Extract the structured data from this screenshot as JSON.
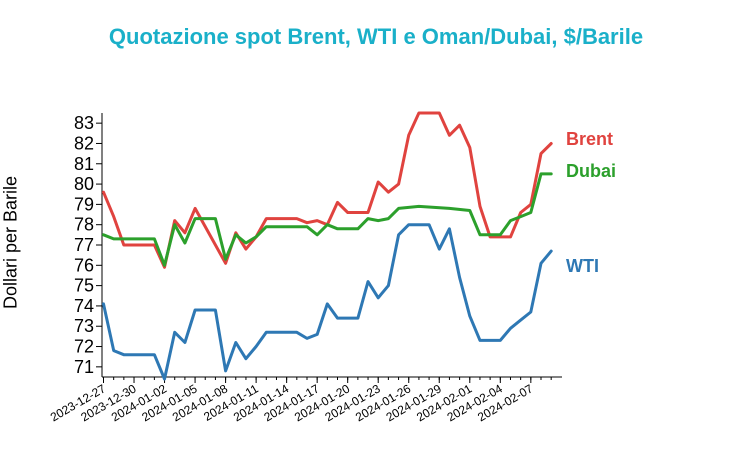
{
  "chart_data": {
    "type": "line",
    "title": "Quotazione spot Brent, WTI e Oman/Dubai, $/Barile",
    "ylabel": "Dollari per Barile",
    "xlabel": "",
    "ylim": [
      70.5,
      83.5
    ],
    "yticks": [
      71,
      72,
      73,
      74,
      75,
      76,
      77,
      78,
      79,
      80,
      81,
      82,
      83
    ],
    "x_start": "2023-12-27",
    "x_end": "2024-02-08",
    "x_ticks": [
      "2023-12-27",
      "2023-12-30",
      "2024-01-02",
      "2024-01-05",
      "2024-01-08",
      "2024-01-11",
      "2024-01-14",
      "2024-01-17",
      "2024-01-20",
      "2024-01-23",
      "2024-01-26",
      "2024-01-29",
      "2024-02-01",
      "2024-02-04",
      "2024-02-07"
    ],
    "series": [
      {
        "name": "Brent",
        "color": "#e0433f",
        "points": [
          [
            "2023-12-27",
            79.6
          ],
          [
            "2023-12-28",
            78.4
          ],
          [
            "2023-12-29",
            77.0
          ],
          [
            "2024-01-01",
            77.0
          ],
          [
            "2024-01-02",
            75.9
          ],
          [
            "2024-01-03",
            78.2
          ],
          [
            "2024-01-04",
            77.6
          ],
          [
            "2024-01-05",
            78.8
          ],
          [
            "2024-01-08",
            76.1
          ],
          [
            "2024-01-09",
            77.6
          ],
          [
            "2024-01-10",
            76.8
          ],
          [
            "2024-01-11",
            77.4
          ],
          [
            "2024-01-12",
            78.3
          ],
          [
            "2024-01-15",
            78.3
          ],
          [
            "2024-01-16",
            78.1
          ],
          [
            "2024-01-17",
            78.2
          ],
          [
            "2024-01-18",
            78.0
          ],
          [
            "2024-01-19",
            79.1
          ],
          [
            "2024-01-20",
            78.6
          ],
          [
            "2024-01-22",
            78.6
          ],
          [
            "2024-01-23",
            80.1
          ],
          [
            "2024-01-24",
            79.6
          ],
          [
            "2024-01-25",
            80.0
          ],
          [
            "2024-01-26",
            82.4
          ],
          [
            "2024-01-27",
            83.5
          ],
          [
            "2024-01-29",
            83.5
          ],
          [
            "2024-01-30",
            82.4
          ],
          [
            "2024-01-31",
            82.9
          ],
          [
            "2024-02-01",
            81.8
          ],
          [
            "2024-02-02",
            78.9
          ],
          [
            "2024-02-03",
            77.4
          ],
          [
            "2024-02-05",
            77.4
          ],
          [
            "2024-02-06",
            78.6
          ],
          [
            "2024-02-07",
            79.0
          ],
          [
            "2024-02-08",
            81.5
          ],
          [
            "2024-02-09",
            82.0
          ]
        ]
      },
      {
        "name": "Dubai",
        "color": "#2ca02c",
        "points": [
          [
            "2023-12-27",
            77.5
          ],
          [
            "2023-12-28",
            77.3
          ],
          [
            "2024-01-01",
            77.3
          ],
          [
            "2024-01-02",
            76.0
          ],
          [
            "2024-01-03",
            78.0
          ],
          [
            "2024-01-04",
            77.1
          ],
          [
            "2024-01-05",
            78.3
          ],
          [
            "2024-01-07",
            78.3
          ],
          [
            "2024-01-08",
            76.3
          ],
          [
            "2024-01-09",
            77.5
          ],
          [
            "2024-01-10",
            77.1
          ],
          [
            "2024-01-11",
            77.4
          ],
          [
            "2024-01-12",
            77.9
          ],
          [
            "2024-01-16",
            77.9
          ],
          [
            "2024-01-17",
            77.5
          ],
          [
            "2024-01-18",
            78.0
          ],
          [
            "2024-01-19",
            77.8
          ],
          [
            "2024-01-21",
            77.8
          ],
          [
            "2024-01-22",
            78.3
          ],
          [
            "2024-01-23",
            78.2
          ],
          [
            "2024-01-24",
            78.3
          ],
          [
            "2024-01-25",
            78.8
          ],
          [
            "2024-01-27",
            78.9
          ],
          [
            "2024-01-30",
            78.8
          ],
          [
            "2024-02-01",
            78.7
          ],
          [
            "2024-02-02",
            77.5
          ],
          [
            "2024-02-03",
            77.5
          ],
          [
            "2024-02-04",
            77.5
          ],
          [
            "2024-02-05",
            78.2
          ],
          [
            "2024-02-06",
            78.4
          ],
          [
            "2024-02-07",
            78.6
          ],
          [
            "2024-02-08",
            80.5
          ],
          [
            "2024-02-09",
            80.5
          ]
        ]
      },
      {
        "name": "WTI",
        "color": "#2e78b4",
        "points": [
          [
            "2023-12-27",
            74.1
          ],
          [
            "2023-12-28",
            71.8
          ],
          [
            "2023-12-29",
            71.6
          ],
          [
            "2024-01-01",
            71.6
          ],
          [
            "2024-01-02",
            70.4
          ],
          [
            "2024-01-03",
            72.7
          ],
          [
            "2024-01-04",
            72.2
          ],
          [
            "2024-01-05",
            73.8
          ],
          [
            "2024-01-07",
            73.8
          ],
          [
            "2024-01-08",
            70.8
          ],
          [
            "2024-01-09",
            72.2
          ],
          [
            "2024-01-10",
            71.4
          ],
          [
            "2024-01-11",
            72.0
          ],
          [
            "2024-01-12",
            72.7
          ],
          [
            "2024-01-15",
            72.7
          ],
          [
            "2024-01-16",
            72.4
          ],
          [
            "2024-01-17",
            72.6
          ],
          [
            "2024-01-18",
            74.1
          ],
          [
            "2024-01-19",
            73.4
          ],
          [
            "2024-01-21",
            73.4
          ],
          [
            "2024-01-22",
            75.2
          ],
          [
            "2024-01-23",
            74.4
          ],
          [
            "2024-01-24",
            75.0
          ],
          [
            "2024-01-25",
            77.5
          ],
          [
            "2024-01-26",
            78.0
          ],
          [
            "2024-01-28",
            78.0
          ],
          [
            "2024-01-29",
            76.8
          ],
          [
            "2024-01-30",
            77.8
          ],
          [
            "2024-01-31",
            75.4
          ],
          [
            "2024-02-01",
            73.5
          ],
          [
            "2024-02-02",
            72.3
          ],
          [
            "2024-02-04",
            72.3
          ],
          [
            "2024-02-05",
            72.9
          ],
          [
            "2024-02-06",
            73.3
          ],
          [
            "2024-02-07",
            73.7
          ],
          [
            "2024-02-08",
            76.1
          ],
          [
            "2024-02-09",
            76.7
          ]
        ]
      }
    ]
  }
}
